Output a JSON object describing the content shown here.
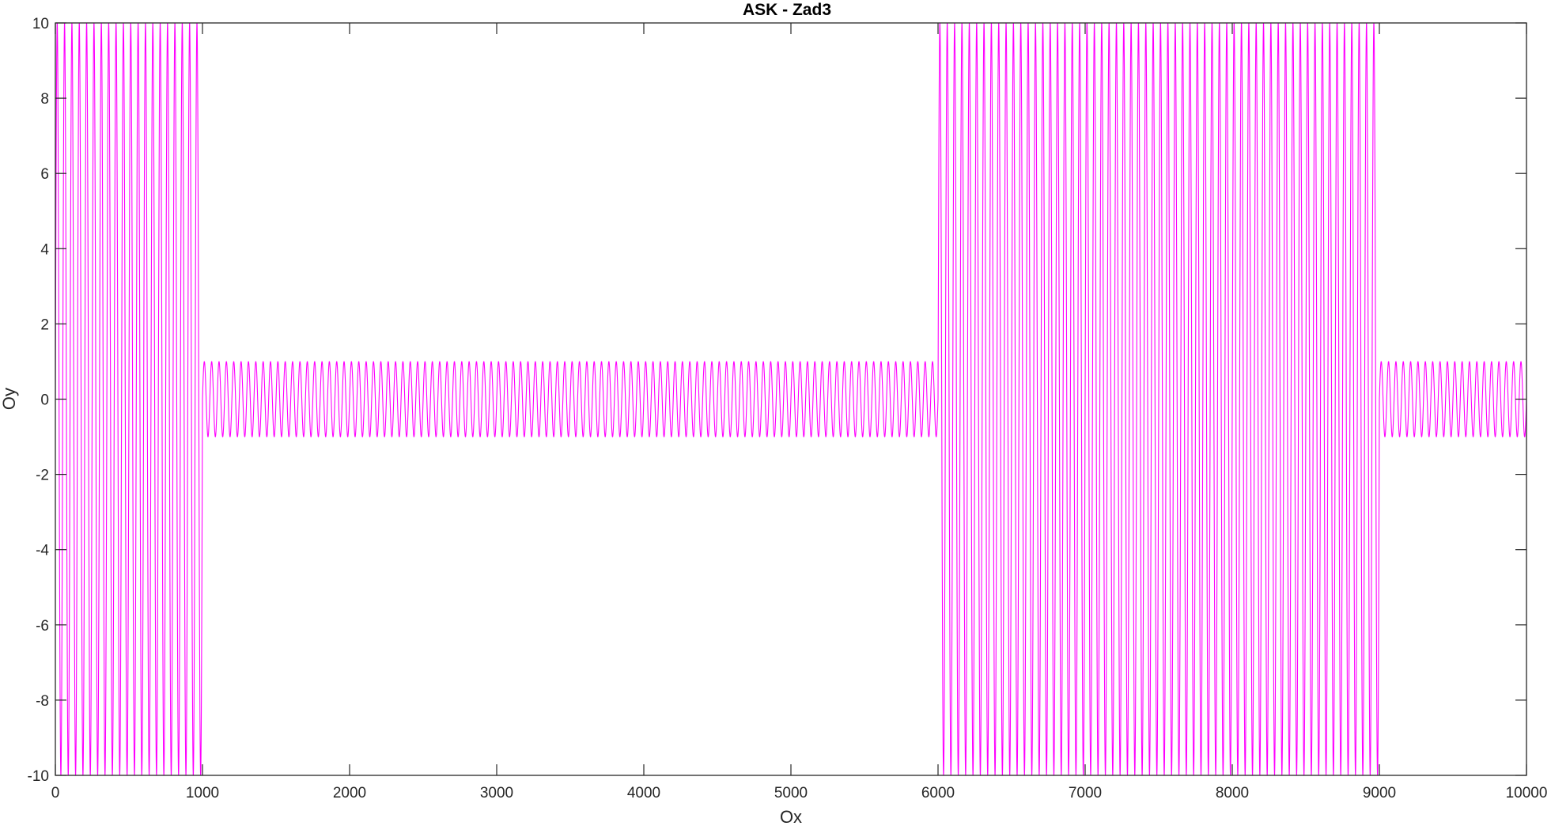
{
  "chart_data": {
    "type": "line",
    "title": "ASK - Zad3",
    "xlabel": "Ox",
    "ylabel": "Oy",
    "xlim": [
      0,
      10000
    ],
    "ylim": [
      -10,
      10
    ],
    "xticks": [
      0,
      1000,
      2000,
      3000,
      4000,
      5000,
      6000,
      7000,
      8000,
      9000,
      10000
    ],
    "yticks": [
      -10,
      -8,
      -6,
      -4,
      -2,
      0,
      2,
      4,
      6,
      8,
      10
    ],
    "xtick_labels": [
      "0",
      "1000",
      "2000",
      "3000",
      "4000",
      "5000",
      "6000",
      "7000",
      "8000",
      "9000",
      "10000"
    ],
    "ytick_labels": [
      "-10",
      "-8",
      "-6",
      "-4",
      "-2",
      "0",
      "2",
      "4",
      "6",
      "8",
      "10"
    ],
    "grid": false,
    "box": true,
    "series": [
      {
        "color": "#ff00ff",
        "carrier_period": 50,
        "segments": [
          {
            "x_start": 0,
            "x_end": 1000,
            "amplitude": 10
          },
          {
            "x_start": 1000,
            "x_end": 6000,
            "amplitude": 1
          },
          {
            "x_start": 6000,
            "x_end": 9000,
            "amplitude": 10
          },
          {
            "x_start": 9000,
            "x_end": 10000,
            "amplitude": 1
          }
        ]
      }
    ]
  }
}
